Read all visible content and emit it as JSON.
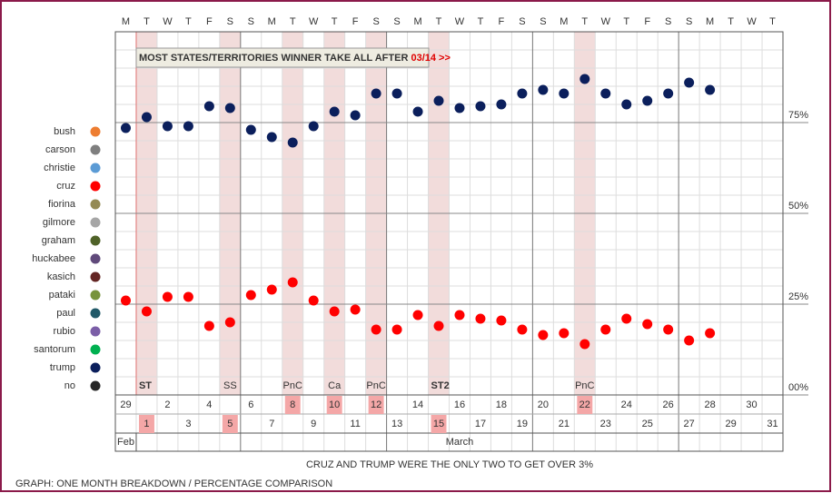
{
  "chart_data": {
    "type": "scatter",
    "annotation": {
      "text": "MOST STATES/TERRITORIES WINNER TAKE ALL AFTER ",
      "highlight": "03/14 >>"
    },
    "subtitle": "CRUZ AND TRUMP WERE THE ONLY TWO TO GET OVER 3%",
    "footer": "GRAPH: ONE MONTH BREAKDOWN / PERCENTAGE COMPARISON",
    "weekdays": [
      "M",
      "T",
      "W",
      "T",
      "F",
      "S",
      "S",
      "M",
      "T",
      "W",
      "T",
      "F",
      "S",
      "S",
      "M",
      "T",
      "W",
      "T",
      "F",
      "S",
      "S",
      "M",
      "T",
      "W",
      "T",
      "F",
      "S",
      "S",
      "M",
      "T",
      "W",
      "T"
    ],
    "categories": [
      "29",
      "1",
      "2",
      "3",
      "4",
      "5",
      "6",
      "7",
      "8",
      "9",
      "10",
      "11",
      "12",
      "13",
      "14",
      "15",
      "16",
      "17",
      "18",
      "19",
      "20",
      "21",
      "22",
      "23",
      "24",
      "25",
      "26",
      "27",
      "28",
      "29",
      "30",
      "31"
    ],
    "months": [
      {
        "label": "Feb",
        "start": 0,
        "end": 0
      },
      {
        "label": "March",
        "start": 1,
        "end": 31
      }
    ],
    "events": [
      {
        "column": 1,
        "label": "ST"
      },
      {
        "column": 5,
        "label": "SS"
      },
      {
        "column": 8,
        "label": "PnC"
      },
      {
        "column": 10,
        "label": "Ca"
      },
      {
        "column": 12,
        "label": "PnC"
      },
      {
        "column": 15,
        "label": "ST2"
      },
      {
        "column": 22,
        "label": "PnC"
      }
    ],
    "ylim": [
      0,
      100
    ],
    "yticks": [
      {
        "value": 0,
        "label": "00%"
      },
      {
        "value": 25,
        "label": "25%"
      },
      {
        "value": 50,
        "label": "50%"
      },
      {
        "value": 75,
        "label": "75%"
      }
    ],
    "minor_yticks": [
      5,
      10,
      15,
      20,
      30,
      35,
      40,
      45,
      55,
      60,
      65,
      70,
      80,
      85,
      90,
      95
    ],
    "grid": true,
    "series": [
      {
        "name": "bush",
        "color": "#ed7d31"
      },
      {
        "name": "carson",
        "color": "#7f7f7f"
      },
      {
        "name": "christie",
        "color": "#5b9bd5"
      },
      {
        "name": "cruz",
        "color": "#ff0000",
        "highlight": true,
        "values": [
          26,
          23,
          27,
          27,
          19,
          20,
          27.5,
          29,
          31,
          26,
          23,
          23.5,
          18,
          18,
          22,
          19,
          22,
          21,
          20.5,
          18,
          16.5,
          17,
          14,
          18,
          21,
          19.5,
          18,
          15,
          17,
          null,
          null,
          null
        ]
      },
      {
        "name": "fiorina",
        "color": "#948a54"
      },
      {
        "name": "gilmore",
        "color": "#a6a6a6"
      },
      {
        "name": "graham",
        "color": "#4f6228"
      },
      {
        "name": "huckabee",
        "color": "#604a7b"
      },
      {
        "name": "kasich",
        "color": "#632523",
        "highlight": true
      },
      {
        "name": "pataki",
        "color": "#77933c"
      },
      {
        "name": "paul",
        "color": "#215968"
      },
      {
        "name": "rubio",
        "color": "#7b5ea7"
      },
      {
        "name": "santorum",
        "color": "#00b050"
      },
      {
        "name": "trump",
        "color": "#0b1f5c",
        "highlight": true,
        "values": [
          73.5,
          76.5,
          74,
          74,
          79.5,
          79,
          73,
          71,
          69.5,
          74,
          78,
          77,
          83,
          83,
          78,
          81,
          79,
          79.5,
          80,
          83,
          84,
          83,
          87,
          83,
          80,
          81,
          83,
          86,
          84,
          null,
          null,
          null
        ]
      },
      {
        "name": "no",
        "color": "#262626",
        "highlight": true
      }
    ]
  }
}
